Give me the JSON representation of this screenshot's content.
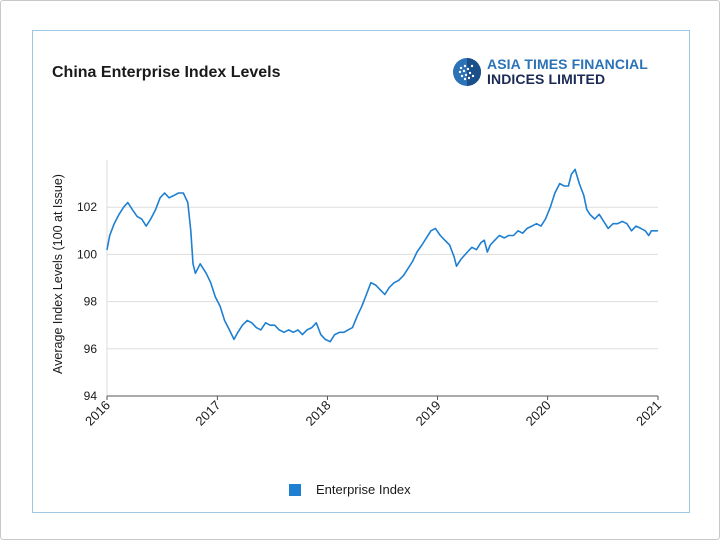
{
  "chart_data": {
    "type": "line",
    "title": "China Enterprise Index Levels",
    "xlabel": "",
    "ylabel": "Average Index Levels (100 at Issue)",
    "ylim": [
      94,
      104
    ],
    "y_ticks": [
      94,
      96,
      98,
      100,
      102
    ],
    "x_ticks": [
      "2016",
      "2017",
      "2018",
      "2019",
      "2020",
      "2021"
    ],
    "grid": "horizontal",
    "legend_position": "bottom-center",
    "series": [
      {
        "name": "Enterprise Index",
        "color": "#1f7fd1",
        "points": [
          [
            "2016-01-01",
            100.2
          ],
          [
            "2016-01-10",
            100.8
          ],
          [
            "2016-01-25",
            101.3
          ],
          [
            "2016-02-10",
            101.7
          ],
          [
            "2016-02-25",
            102.0
          ],
          [
            "2016-03-10",
            102.2
          ],
          [
            "2016-03-25",
            101.9
          ],
          [
            "2016-04-10",
            101.6
          ],
          [
            "2016-04-25",
            101.5
          ],
          [
            "2016-05-10",
            101.2
          ],
          [
            "2016-05-25",
            101.5
          ],
          [
            "2016-06-10",
            101.9
          ],
          [
            "2016-06-25",
            102.4
          ],
          [
            "2016-07-10",
            102.6
          ],
          [
            "2016-07-25",
            102.4
          ],
          [
            "2016-08-10",
            102.5
          ],
          [
            "2016-08-25",
            102.6
          ],
          [
            "2016-09-10",
            102.6
          ],
          [
            "2016-09-25",
            102.2
          ],
          [
            "2016-10-05",
            101.0
          ],
          [
            "2016-10-12",
            99.6
          ],
          [
            "2016-10-20",
            99.2
          ],
          [
            "2016-11-05",
            99.6
          ],
          [
            "2016-11-25",
            99.2
          ],
          [
            "2016-12-10",
            98.8
          ],
          [
            "2016-12-25",
            98.2
          ],
          [
            "2017-01-10",
            97.8
          ],
          [
            "2017-01-25",
            97.2
          ],
          [
            "2017-02-10",
            96.8
          ],
          [
            "2017-02-25",
            96.4
          ],
          [
            "2017-03-10",
            96.7
          ],
          [
            "2017-03-25",
            97.0
          ],
          [
            "2017-04-10",
            97.2
          ],
          [
            "2017-04-25",
            97.1
          ],
          [
            "2017-05-10",
            96.9
          ],
          [
            "2017-05-25",
            96.8
          ],
          [
            "2017-06-10",
            97.1
          ],
          [
            "2017-06-25",
            97.0
          ],
          [
            "2017-07-10",
            97.0
          ],
          [
            "2017-07-25",
            96.8
          ],
          [
            "2017-08-10",
            96.7
          ],
          [
            "2017-08-25",
            96.8
          ],
          [
            "2017-09-10",
            96.7
          ],
          [
            "2017-09-25",
            96.8
          ],
          [
            "2017-10-10",
            96.6
          ],
          [
            "2017-10-25",
            96.8
          ],
          [
            "2017-11-10",
            96.9
          ],
          [
            "2017-11-25",
            97.1
          ],
          [
            "2017-12-10",
            96.6
          ],
          [
            "2017-12-25",
            96.4
          ],
          [
            "2018-01-10",
            96.3
          ],
          [
            "2018-01-25",
            96.6
          ],
          [
            "2018-02-10",
            96.7
          ],
          [
            "2018-02-25",
            96.7
          ],
          [
            "2018-03-10",
            96.8
          ],
          [
            "2018-03-25",
            96.9
          ],
          [
            "2018-04-10",
            97.4
          ],
          [
            "2018-04-25",
            97.8
          ],
          [
            "2018-05-10",
            98.3
          ],
          [
            "2018-05-25",
            98.8
          ],
          [
            "2018-06-10",
            98.7
          ],
          [
            "2018-06-25",
            98.5
          ],
          [
            "2018-07-10",
            98.3
          ],
          [
            "2018-07-25",
            98.6
          ],
          [
            "2018-08-10",
            98.8
          ],
          [
            "2018-08-25",
            98.9
          ],
          [
            "2018-09-10",
            99.1
          ],
          [
            "2018-09-25",
            99.4
          ],
          [
            "2018-10-10",
            99.7
          ],
          [
            "2018-10-25",
            100.1
          ],
          [
            "2018-11-10",
            100.4
          ],
          [
            "2018-11-25",
            100.7
          ],
          [
            "2018-12-10",
            101.0
          ],
          [
            "2018-12-25",
            101.1
          ],
          [
            "2019-01-10",
            100.8
          ],
          [
            "2019-01-25",
            100.6
          ],
          [
            "2019-02-10",
            100.4
          ],
          [
            "2019-02-25",
            99.9
          ],
          [
            "2019-03-05",
            99.5
          ],
          [
            "2019-03-20",
            99.8
          ],
          [
            "2019-04-10",
            100.1
          ],
          [
            "2019-04-25",
            100.3
          ],
          [
            "2019-05-10",
            100.2
          ],
          [
            "2019-05-25",
            100.5
          ],
          [
            "2019-06-05",
            100.6
          ],
          [
            "2019-06-15",
            100.1
          ],
          [
            "2019-06-25",
            100.4
          ],
          [
            "2019-07-10",
            100.6
          ],
          [
            "2019-07-25",
            100.8
          ],
          [
            "2019-08-10",
            100.7
          ],
          [
            "2019-08-25",
            100.8
          ],
          [
            "2019-09-10",
            100.8
          ],
          [
            "2019-09-25",
            101.0
          ],
          [
            "2019-10-10",
            100.9
          ],
          [
            "2019-10-25",
            101.1
          ],
          [
            "2019-11-10",
            101.2
          ],
          [
            "2019-11-25",
            101.3
          ],
          [
            "2019-12-10",
            101.2
          ],
          [
            "2019-12-25",
            101.5
          ],
          [
            "2020-01-10",
            102.0
          ],
          [
            "2020-01-25",
            102.6
          ],
          [
            "2020-02-10",
            103.0
          ],
          [
            "2020-02-25",
            102.9
          ],
          [
            "2020-03-10",
            102.9
          ],
          [
            "2020-03-20",
            103.4
          ],
          [
            "2020-04-01",
            103.6
          ],
          [
            "2020-04-15",
            103.0
          ],
          [
            "2020-04-30",
            102.5
          ],
          [
            "2020-05-10",
            101.9
          ],
          [
            "2020-05-20",
            101.7
          ],
          [
            "2020-06-05",
            101.5
          ],
          [
            "2020-06-20",
            101.7
          ],
          [
            "2020-07-05",
            101.4
          ],
          [
            "2020-07-20",
            101.1
          ],
          [
            "2020-08-05",
            101.3
          ],
          [
            "2020-08-20",
            101.3
          ],
          [
            "2020-09-05",
            101.4
          ],
          [
            "2020-09-20",
            101.3
          ],
          [
            "2020-10-05",
            101.0
          ],
          [
            "2020-10-20",
            101.2
          ],
          [
            "2020-11-05",
            101.1
          ],
          [
            "2020-11-20",
            101.0
          ],
          [
            "2020-12-01",
            100.8
          ],
          [
            "2020-12-10",
            101.0
          ],
          [
            "2020-12-20",
            101.0
          ],
          [
            "2020-12-31",
            101.0
          ]
        ]
      }
    ]
  },
  "brand": {
    "line1": "ASIA TIMES FINANCIAL",
    "line2": "INDICES LIMITED",
    "logo_icon": "globe-dots-icon",
    "color_primary": "#2b73b6",
    "color_dark": "#1a2a55"
  },
  "colors": {
    "line": "#1f7fd1",
    "grid": "#dddddd",
    "frame": "#9ec7e3"
  }
}
